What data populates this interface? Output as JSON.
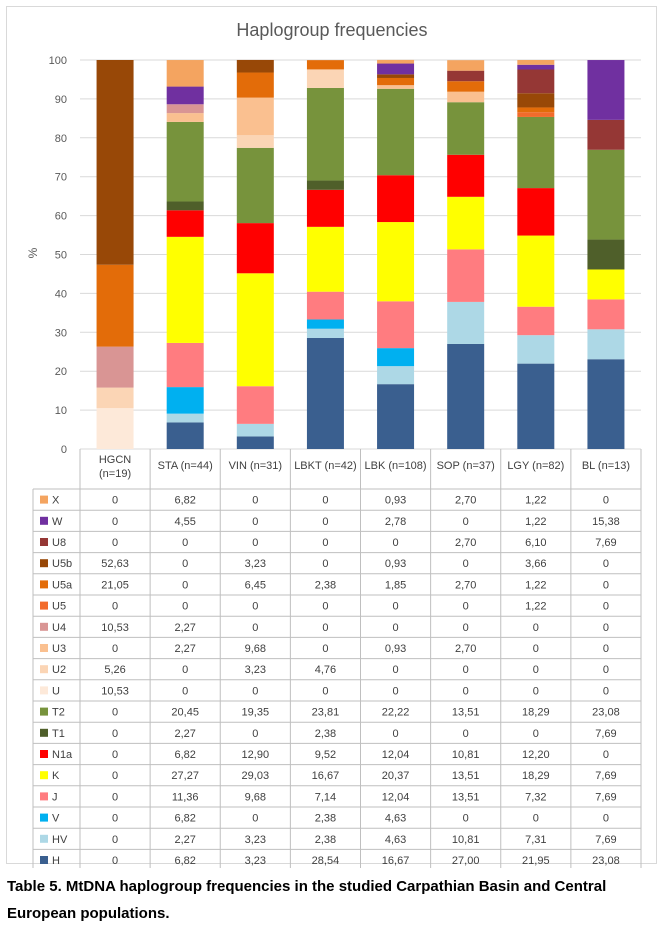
{
  "chart_data": {
    "type": "stacked_bar",
    "title": "Haplogroup frequencies",
    "ylabel": "%",
    "xlabel": "",
    "ylim": [
      0,
      100
    ],
    "yticks": [
      0,
      10,
      20,
      30,
      40,
      50,
      60,
      70,
      80,
      90,
      100
    ],
    "grid": true,
    "legend": "data-table",
    "categories": [
      "HGCN (n=19)",
      "STA (n=44)",
      "VIN (n=31)",
      "LBKT (n=42)",
      "LBK (n=108)",
      "SOP (n=37)",
      "LGY (n=82)",
      "BL (n=13)"
    ],
    "series": [
      {
        "name": "H",
        "color": "#3A5F8F",
        "values": [
          "0",
          "6,82",
          "3,23",
          "28,54",
          "16,67",
          "27,00",
          "21,95",
          "23,08"
        ]
      },
      {
        "name": "HV",
        "color": "#ADD8E6",
        "values": [
          "0",
          "2,27",
          "3,23",
          "2,38",
          "4,63",
          "10,81",
          "7,31",
          "7,69"
        ]
      },
      {
        "name": "V",
        "color": "#00B0F0",
        "values": [
          "0",
          "6,82",
          "0",
          "2,38",
          "4,63",
          "0",
          "0",
          "0"
        ]
      },
      {
        "name": "J",
        "color": "#FF7C80",
        "values": [
          "0",
          "11,36",
          "9,68",
          "7,14",
          "12,04",
          "13,51",
          "7,32",
          "7,69"
        ]
      },
      {
        "name": "K",
        "color": "#FFFF00",
        "values": [
          "0",
          "27,27",
          "29,03",
          "16,67",
          "20,37",
          "13,51",
          "18,29",
          "7,69"
        ]
      },
      {
        "name": "N1a",
        "color": "#FF0000",
        "values": [
          "0",
          "6,82",
          "12,90",
          "9,52",
          "12,04",
          "10,81",
          "12,20",
          "0"
        ]
      },
      {
        "name": "T1",
        "color": "#4F5F2A",
        "values": [
          "0",
          "2,27",
          "0",
          "2,38",
          "0",
          "0",
          "0",
          "7,69"
        ]
      },
      {
        "name": "T2",
        "color": "#77933C",
        "values": [
          "0",
          "20,45",
          "19,35",
          "23,81",
          "22,22",
          "13,51",
          "18,29",
          "23,08"
        ]
      },
      {
        "name": "U",
        "color": "#FDE9D9",
        "values": [
          "10,53",
          "0",
          "0",
          "0",
          "0",
          "0",
          "0",
          "0"
        ]
      },
      {
        "name": "U2",
        "color": "#FBD5B5",
        "values": [
          "5,26",
          "0",
          "3,23",
          "4,76",
          "0",
          "0",
          "0",
          "0"
        ]
      },
      {
        "name": "U3",
        "color": "#FAC090",
        "values": [
          "0",
          "2,27",
          "9,68",
          "0",
          "0,93",
          "2,70",
          "0",
          "0"
        ]
      },
      {
        "name": "U4",
        "color": "#D99594",
        "values": [
          "10,53",
          "2,27",
          "0",
          "0",
          "0",
          "0",
          "0",
          "0"
        ]
      },
      {
        "name": "U5",
        "color": "#F26B2B",
        "values": [
          "0",
          "0",
          "0",
          "0",
          "0",
          "0",
          "1,22",
          "0"
        ]
      },
      {
        "name": "U5a",
        "color": "#E36C09",
        "values": [
          "21,05",
          "0",
          "6,45",
          "2,38",
          "1,85",
          "2,70",
          "1,22",
          "0"
        ]
      },
      {
        "name": "U5b",
        "color": "#984807",
        "values": [
          "52,63",
          "0",
          "3,23",
          "0",
          "0,93",
          "0",
          "3,66",
          "0"
        ]
      },
      {
        "name": "U8",
        "color": "#953735",
        "values": [
          "0",
          "0",
          "0",
          "0",
          "0",
          "2,70",
          "6,10",
          "7,69"
        ]
      },
      {
        "name": "W",
        "color": "#7030A0",
        "values": [
          "0",
          "4,55",
          "0",
          "0",
          "2,78",
          "0",
          "1,22",
          "15,38"
        ]
      },
      {
        "name": "X",
        "color": "#F4A460",
        "values": [
          "0",
          "6,82",
          "0",
          "0",
          "0,93",
          "2,70",
          "1,22",
          "0"
        ]
      }
    ]
  },
  "caption": "Table 5. MtDNA haplogroup frequencies in the studied Carpathian Basin and Central European populations."
}
